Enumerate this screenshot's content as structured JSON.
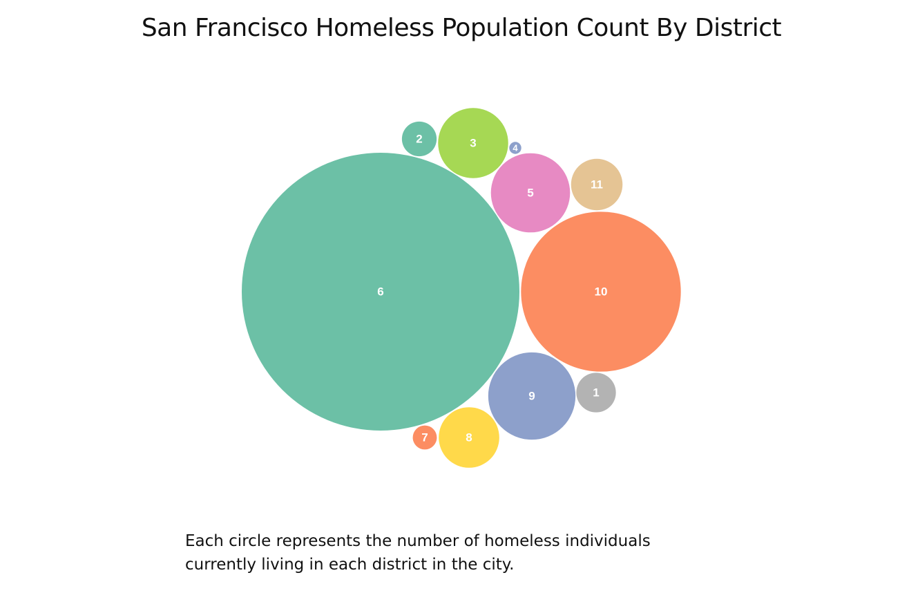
{
  "chart_data": {
    "type": "bubble",
    "title": "San Francisco Homeless Population Count By District",
    "series": [
      {
        "name": "6",
        "value": 160000,
        "color": "#6cc0a6"
      },
      {
        "name": "10",
        "value": 53000,
        "color": "#fc8d62"
      },
      {
        "name": "5",
        "value": 13000,
        "color": "#e78ac3"
      },
      {
        "name": "9",
        "value": 15800,
        "color": "#8da0cb"
      },
      {
        "name": "8",
        "value": 7600,
        "color": "#ffd94a"
      },
      {
        "name": "3",
        "value": 10200,
        "color": "#a6d854"
      },
      {
        "name": "11",
        "value": 5500,
        "color": "#e5c494"
      },
      {
        "name": "1",
        "value": 3250,
        "color": "#b3b3b3"
      },
      {
        "name": "2",
        "value": 2500,
        "color": "#6cc0a6"
      },
      {
        "name": "7",
        "value": 1200,
        "color": "#fc8d62"
      },
      {
        "name": "4",
        "value": 300,
        "color": "#8da0cb"
      }
    ]
  },
  "caption": {
    "line1": "Each circle represents the number of homeless individuals",
    "line2": "currently living in each district in the city."
  }
}
